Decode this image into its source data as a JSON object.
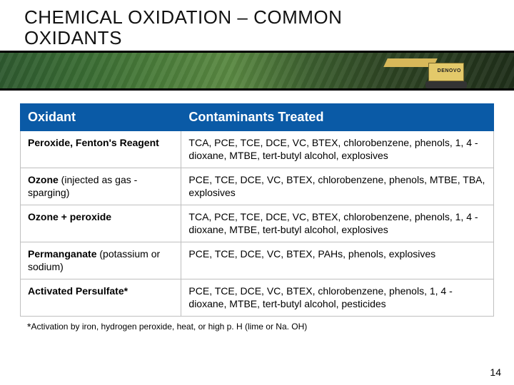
{
  "title_line1": "CHEMICAL OXIDATION – COMMON",
  "title_line2": "OXIDANTS",
  "banner_machine_label": "DENOVO",
  "table": {
    "header_col1": "Oxidant",
    "header_col2": "Contaminants Treated",
    "rows": [
      {
        "oxidant_main": "Peroxide, Fenton's Reagent",
        "oxidant_sub": "",
        "contaminants": "TCA, PCE, TCE, DCE, VC, BTEX, chlorobenzene, phenols, 1, 4 -dioxane, MTBE, tert-butyl alcohol, explosives"
      },
      {
        "oxidant_main": "Ozone",
        "oxidant_sub": " (injected as gas - sparging)",
        "contaminants": "PCE, TCE, DCE, VC, BTEX, chlorobenzene, phenols, MTBE, TBA, explosives"
      },
      {
        "oxidant_main": "Ozone + peroxide",
        "oxidant_sub": "",
        "contaminants": "TCA, PCE, TCE, DCE, VC, BTEX, chlorobenzene, phenols, 1, 4 -dioxane, MTBE, tert-butyl alcohol, explosives"
      },
      {
        "oxidant_main": "Permanganate",
        "oxidant_sub": " (potassium or sodium)",
        "contaminants": "PCE, TCE, DCE, VC, BTEX, PAHs, phenols, explosives"
      },
      {
        "oxidant_main": "Activated Persulfate*",
        "oxidant_sub": "",
        "contaminants": "PCE, TCE, DCE, VC, BTEX, chlorobenzene, phenols, 1, 4 -dioxane, MTBE, tert-butyl alcohol, pesticides"
      }
    ]
  },
  "footnote_star": "*",
  "footnote_text": "Activation by iron, hydrogen peroxide, heat, or high p. H (lime or Na. OH)",
  "page_number": "14",
  "colors": {
    "header_bg": "#0a5aa6",
    "cell_border": "#bfbfbf"
  }
}
